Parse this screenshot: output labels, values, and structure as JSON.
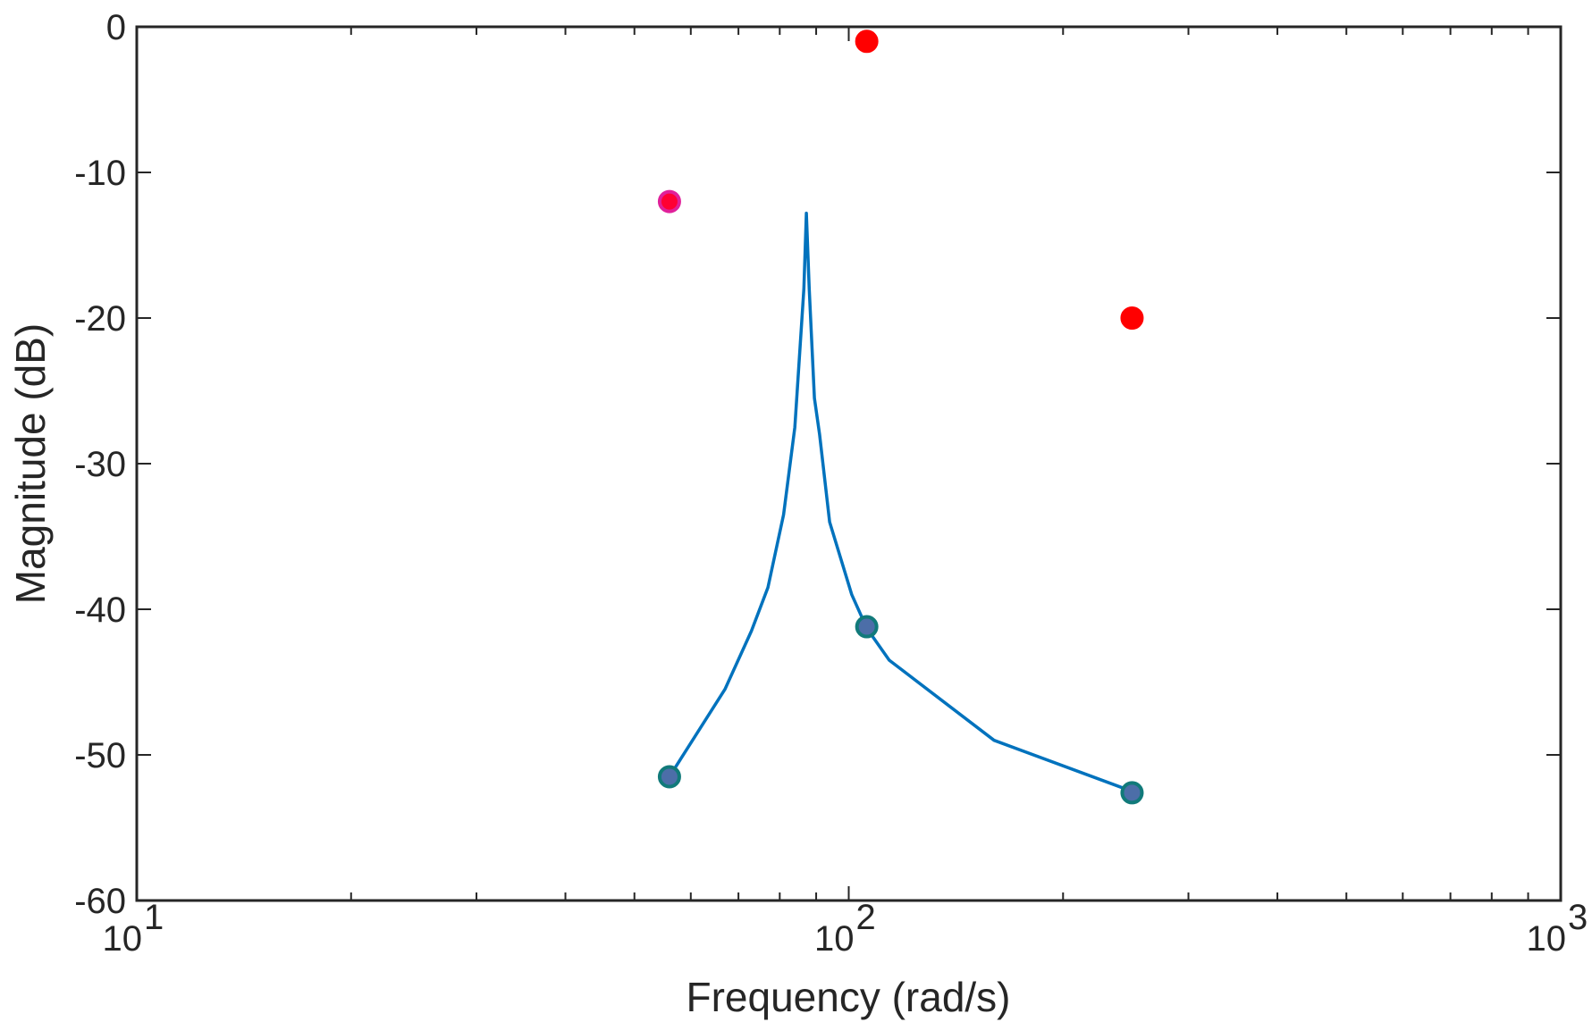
{
  "chart_data": {
    "type": "line",
    "xlabel": "Frequency (rad/s)",
    "ylabel": "Magnitude (dB)",
    "xscale": "log",
    "xlim": [
      10,
      1000
    ],
    "ylim": [
      -60,
      0
    ],
    "grid": false,
    "legend": "none",
    "xticks": [
      {
        "value": 10,
        "base": "10",
        "exp": "1"
      },
      {
        "value": 100,
        "base": "10",
        "exp": "2"
      },
      {
        "value": 1000,
        "base": "10",
        "exp": "3"
      }
    ],
    "yticks": [
      {
        "value": 0,
        "label": "0"
      },
      {
        "value": -10,
        "label": "-10"
      },
      {
        "value": -20,
        "label": "-20"
      },
      {
        "value": -30,
        "label": "-30"
      },
      {
        "value": -40,
        "label": "-40"
      },
      {
        "value": -50,
        "label": "-50"
      },
      {
        "value": -60,
        "label": "-60"
      }
    ],
    "series": [
      {
        "kind": "line",
        "color": "#0072BD",
        "x": [
          56,
          67,
          73,
          77,
          81,
          84,
          86.5,
          87.2,
          88,
          89.5,
          91,
          94,
          101,
          106,
          114,
          160,
          250
        ],
        "y": [
          -51.5,
          -45.5,
          -41.5,
          -38.5,
          -33.5,
          -27.5,
          -18,
          -12.8,
          -18,
          -25.5,
          -28,
          -34,
          -39,
          -41.3,
          -43.5,
          -49,
          -52.5
        ]
      },
      {
        "kind": "markers",
        "color": "#4C6EA8",
        "edge": "#117A7A",
        "x": [
          56,
          106,
          250
        ],
        "y": [
          -51.5,
          -41.2,
          -52.6
        ]
      },
      {
        "kind": "markers",
        "color": "#FF0000",
        "edge": "#FF0000",
        "x": [
          106,
          250
        ],
        "y": [
          -1,
          -20
        ]
      },
      {
        "kind": "markers",
        "color": "#FF0033",
        "edge": "#E0209A",
        "x": [
          56
        ],
        "y": [
          -12
        ]
      }
    ]
  }
}
